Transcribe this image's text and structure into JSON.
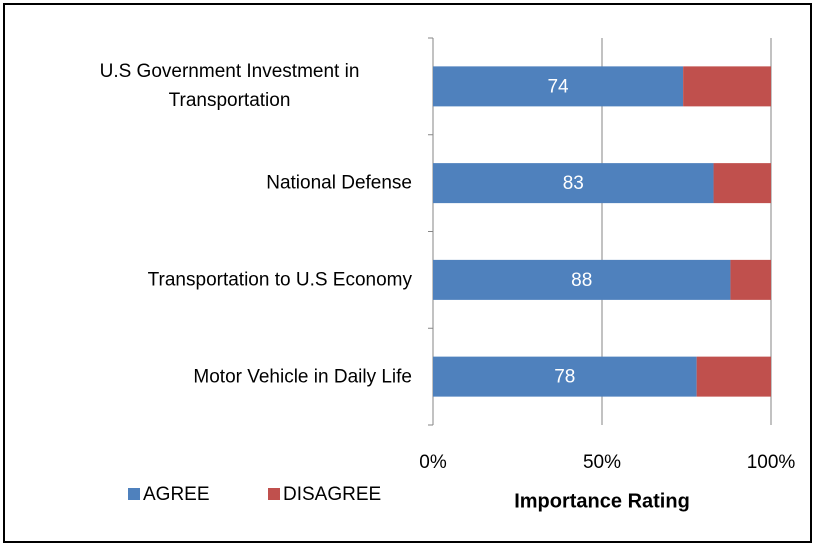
{
  "chart_data": {
    "type": "stacked_bar_horizontal",
    "categories": [
      "U.S Government Investment in Transportation",
      "National Defense",
      "Transportation to U.S Economy",
      "Motor Vehicle in Daily Life"
    ],
    "series": [
      {
        "name": "AGREE",
        "color": "#4f81bd",
        "values": [
          74,
          83,
          88,
          78
        ]
      },
      {
        "name": "DISAGREE",
        "color": "#c0504d",
        "values": [
          26,
          17,
          12,
          22
        ]
      }
    ],
    "xlim": [
      0,
      100
    ],
    "xticks": [
      {
        "value": 0,
        "label": "0%"
      },
      {
        "value": 50,
        "label": "50%"
      },
      {
        "value": 100,
        "label": "100%"
      }
    ],
    "x_label": "Importance Rating",
    "grid": true
  }
}
